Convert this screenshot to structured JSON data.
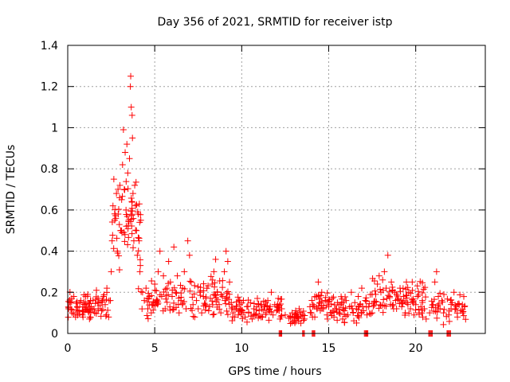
{
  "chart_data": {
    "type": "scatter",
    "title": "Day 356 of 2021, SRMTID for receiver istp",
    "xlabel": "GPS time / hours",
    "ylabel": "SRMTID / TECUs",
    "xlim": [
      0,
      24
    ],
    "ylim": [
      0,
      1.4
    ],
    "xticks": [
      0,
      5,
      10,
      15,
      20
    ],
    "xtick_labels": [
      "0",
      "5",
      "10",
      "15",
      "20"
    ],
    "yticks": [
      0,
      0.2,
      0.4,
      0.6,
      0.8,
      1.0,
      1.2,
      1.4
    ],
    "ytick_labels": [
      "0",
      "0.2",
      "0.4",
      "0.6",
      "0.8",
      "1",
      "1.2",
      "1.4"
    ],
    "grid": true,
    "marker": "+",
    "color": "#ff0000",
    "series": [
      {
        "name": "SRMTID",
        "points": [
          [
            0.05,
            0.12
          ],
          [
            0.15,
            0.15
          ],
          [
            0.25,
            0.1
          ],
          [
            0.35,
            0.18
          ],
          [
            0.45,
            0.08
          ],
          [
            0.55,
            0.13
          ],
          [
            0.65,
            0.11
          ],
          [
            0.75,
            0.16
          ],
          [
            0.85,
            0.09
          ],
          [
            0.95,
            0.14
          ],
          [
            1.05,
            0.12
          ],
          [
            1.15,
            0.19
          ],
          [
            1.25,
            0.07
          ],
          [
            1.35,
            0.13
          ],
          [
            1.45,
            0.16
          ],
          [
            1.55,
            0.1
          ],
          [
            1.65,
            0.21
          ],
          [
            1.75,
            0.12
          ],
          [
            1.85,
            0.15
          ],
          [
            1.95,
            0.11
          ],
          [
            2.05,
            0.18
          ],
          [
            2.15,
            0.14
          ],
          [
            2.25,
            0.22
          ],
          [
            2.35,
            0.08
          ],
          [
            2.45,
            0.16
          ],
          [
            2.5,
            0.3
          ],
          [
            2.55,
            0.45
          ],
          [
            2.6,
            0.62
          ],
          [
            2.65,
            0.75
          ],
          [
            2.7,
            0.55
          ],
          [
            2.8,
            0.68
          ],
          [
            2.85,
            0.4
          ],
          [
            2.9,
            0.58
          ],
          [
            3.0,
            0.72
          ],
          [
            3.05,
            0.5
          ],
          [
            3.1,
            0.65
          ],
          [
            3.15,
            0.82
          ],
          [
            3.2,
            0.99
          ],
          [
            3.25,
            0.7
          ],
          [
            3.3,
            0.88
          ],
          [
            3.35,
            0.6
          ],
          [
            3.4,
            0.92
          ],
          [
            3.45,
            0.78
          ],
          [
            3.5,
            0.55
          ],
          [
            3.55,
            0.85
          ],
          [
            3.6,
            1.2
          ],
          [
            3.62,
            1.25
          ],
          [
            3.65,
            1.1
          ],
          [
            3.7,
            1.06
          ],
          [
            3.72,
            0.95
          ],
          [
            3.75,
            0.68
          ],
          [
            3.8,
            0.45
          ],
          [
            3.85,
            0.72
          ],
          [
            3.9,
            0.62
          ],
          [
            3.95,
            0.5
          ],
          [
            4.0,
            0.38
          ],
          [
            4.05,
            0.58
          ],
          [
            4.1,
            0.45
          ],
          [
            4.15,
            0.3
          ],
          [
            4.2,
            0.55
          ],
          [
            4.3,
            0.2
          ],
          [
            4.4,
            0.16
          ],
          [
            4.5,
            0.22
          ],
          [
            4.6,
            0.12
          ],
          [
            4.7,
            0.18
          ],
          [
            4.8,
            0.1
          ],
          [
            4.9,
            0.14
          ],
          [
            5.0,
            0.24
          ],
          [
            5.1,
            0.16
          ],
          [
            5.2,
            0.3
          ],
          [
            5.3,
            0.4
          ],
          [
            5.4,
            0.18
          ],
          [
            5.5,
            0.28
          ],
          [
            5.6,
            0.12
          ],
          [
            5.7,
            0.22
          ],
          [
            5.8,
            0.35
          ],
          [
            5.9,
            0.25
          ],
          [
            6.0,
            0.18
          ],
          [
            6.1,
            0.42
          ],
          [
            6.2,
            0.2
          ],
          [
            6.3,
            0.28
          ],
          [
            6.4,
            0.1
          ],
          [
            6.5,
            0.16
          ],
          [
            6.6,
            0.22
          ],
          [
            6.7,
            0.3
          ],
          [
            6.8,
            0.12
          ],
          [
            6.9,
            0.45
          ],
          [
            7.0,
            0.38
          ],
          [
            7.1,
            0.25
          ],
          [
            7.2,
            0.14
          ],
          [
            7.3,
            0.08
          ],
          [
            7.4,
            0.16
          ],
          [
            7.5,
            0.12
          ],
          [
            7.6,
            0.2
          ],
          [
            7.7,
            0.1
          ],
          [
            7.8,
            0.18
          ],
          [
            7.9,
            0.14
          ],
          [
            8.0,
            0.22
          ],
          [
            8.1,
            0.11
          ],
          [
            8.2,
            0.17
          ],
          [
            8.3,
            0.24
          ],
          [
            8.4,
            0.3
          ],
          [
            8.5,
            0.36
          ],
          [
            8.6,
            0.2
          ],
          [
            8.7,
            0.14
          ],
          [
            8.8,
            0.1
          ],
          [
            8.9,
            0.18
          ],
          [
            9.0,
            0.3
          ],
          [
            9.1,
            0.4
          ],
          [
            9.2,
            0.35
          ],
          [
            9.3,
            0.25
          ],
          [
            9.4,
            0.15
          ],
          [
            9.5,
            0.1
          ],
          [
            9.6,
            0.08
          ],
          [
            9.7,
            0.12
          ],
          [
            9.8,
            0.09
          ],
          [
            9.9,
            0.14
          ],
          [
            10.0,
            0.11
          ],
          [
            10.1,
            0.16
          ],
          [
            10.2,
            0.08
          ],
          [
            10.3,
            0.13
          ],
          [
            10.4,
            0.1
          ],
          [
            10.5,
            0.15
          ],
          [
            10.6,
            0.07
          ],
          [
            10.7,
            0.12
          ],
          [
            10.8,
            0.09
          ],
          [
            10.9,
            0.17
          ],
          [
            11.0,
            0.11
          ],
          [
            11.1,
            0.14
          ],
          [
            11.2,
            0.08
          ],
          [
            11.3,
            0.13
          ],
          [
            11.4,
            0.1
          ],
          [
            11.5,
            0.16
          ],
          [
            11.6,
            0.12
          ],
          [
            11.7,
            0.2
          ],
          [
            11.8,
            0.09
          ],
          [
            11.9,
            0.14
          ],
          [
            12.0,
            0.11
          ],
          [
            12.1,
            0.17
          ],
          [
            12.2,
            0.07
          ],
          [
            12.3,
            0.12
          ],
          [
            12.5,
            0.09
          ],
          [
            12.9,
            0.1
          ],
          [
            13.0,
            0.06
          ],
          [
            13.1,
            0.11
          ],
          [
            13.2,
            0.08
          ],
          [
            13.3,
            0.12
          ],
          [
            13.4,
            0.05
          ],
          [
            13.5,
            0.09
          ],
          [
            13.6,
            0.07
          ],
          [
            14.0,
            0.1
          ],
          [
            14.1,
            0.14
          ],
          [
            14.2,
            0.08
          ],
          [
            14.3,
            0.18
          ],
          [
            14.4,
            0.25
          ],
          [
            14.5,
            0.15
          ],
          [
            14.6,
            0.2
          ],
          [
            14.7,
            0.12
          ],
          [
            14.8,
            0.16
          ],
          [
            14.9,
            0.09
          ],
          [
            15.0,
            0.13
          ],
          [
            15.1,
            0.1
          ],
          [
            15.2,
            0.17
          ],
          [
            15.3,
            0.08
          ],
          [
            15.4,
            0.12
          ],
          [
            15.5,
            0.15
          ],
          [
            15.6,
            0.1
          ],
          [
            15.7,
            0.14
          ],
          [
            15.8,
            0.07
          ],
          [
            15.9,
            0.11
          ],
          [
            16.0,
            0.16
          ],
          [
            16.1,
            0.09
          ],
          [
            16.2,
            0.13
          ],
          [
            16.3,
            0.2
          ],
          [
            16.4,
            0.1
          ],
          [
            16.5,
            0.15
          ],
          [
            16.6,
            0.12
          ],
          [
            16.7,
            0.18
          ],
          [
            16.8,
            0.14
          ],
          [
            16.9,
            0.22
          ],
          [
            17.0,
            0.11
          ],
          [
            17.1,
            0.16
          ],
          [
            17.2,
            0.09
          ],
          [
            17.3,
            0.13
          ],
          [
            17.5,
            0.1
          ],
          [
            17.6,
            0.15
          ],
          [
            17.7,
            0.19
          ],
          [
            17.8,
            0.24
          ],
          [
            17.9,
            0.28
          ],
          [
            18.0,
            0.2
          ],
          [
            18.1,
            0.26
          ],
          [
            18.2,
            0.3
          ],
          [
            18.3,
            0.22
          ],
          [
            18.4,
            0.38
          ],
          [
            18.5,
            0.18
          ],
          [
            18.6,
            0.25
          ],
          [
            18.7,
            0.14
          ],
          [
            18.8,
            0.2
          ],
          [
            18.9,
            0.12
          ],
          [
            19.0,
            0.17
          ],
          [
            19.1,
            0.22
          ],
          [
            19.2,
            0.13
          ],
          [
            19.3,
            0.18
          ],
          [
            19.4,
            0.1
          ],
          [
            19.5,
            0.15
          ],
          [
            19.6,
            0.2
          ],
          [
            19.7,
            0.12
          ],
          [
            19.8,
            0.25
          ],
          [
            19.9,
            0.09
          ],
          [
            20.0,
            0.14
          ],
          [
            20.1,
            0.18
          ],
          [
            20.2,
            0.1
          ],
          [
            20.3,
            0.13
          ],
          [
            20.4,
            0.08
          ],
          [
            20.5,
            0.12
          ],
          [
            20.6,
            0.07
          ],
          [
            20.8,
            0.1
          ],
          [
            21.0,
            0.14
          ],
          [
            21.1,
            0.25
          ],
          [
            21.2,
            0.3
          ],
          [
            21.3,
            0.18
          ],
          [
            21.4,
            0.12
          ],
          [
            21.5,
            0.16
          ],
          [
            21.6,
            0.1
          ],
          [
            21.9,
            0.09
          ],
          [
            22.1,
            0.15
          ],
          [
            22.2,
            0.2
          ],
          [
            22.3,
            0.12
          ],
          [
            22.4,
            0.08
          ],
          [
            22.5,
            0.14
          ],
          [
            22.6,
            0.11
          ],
          [
            22.7,
            0.1
          ],
          [
            22.8,
            0.13
          ]
        ]
      }
    ],
    "dense_clusters": [
      {
        "x_range": [
          0.0,
          2.4
        ],
        "y_center": 0.13,
        "y_spread": 0.05,
        "n": 70
      },
      {
        "x_range": [
          2.5,
          4.2
        ],
        "y_center": 0.5,
        "y_spread": 0.18,
        "n": 60
      },
      {
        "x_range": [
          4.2,
          9.6
        ],
        "y_center": 0.17,
        "y_spread": 0.07,
        "n": 110
      },
      {
        "x_range": [
          9.6,
          12.3
        ],
        "y_center": 0.12,
        "y_spread": 0.04,
        "n": 60
      },
      {
        "x_range": [
          12.7,
          13.8
        ],
        "y_center": 0.08,
        "y_spread": 0.02,
        "n": 25
      },
      {
        "x_range": [
          13.9,
          17.4
        ],
        "y_center": 0.13,
        "y_spread": 0.05,
        "n": 75
      },
      {
        "x_range": [
          17.4,
          20.6
        ],
        "y_center": 0.17,
        "y_spread": 0.06,
        "n": 75
      },
      {
        "x_range": [
          20.9,
          22.9
        ],
        "y_center": 0.13,
        "y_spread": 0.05,
        "n": 40
      }
    ],
    "zero_runs": [
      [
        12.15,
        12.35
      ],
      [
        13.5,
        13.65
      ],
      [
        14.05,
        14.25
      ],
      [
        17.05,
        17.3
      ],
      [
        20.75,
        21.0
      ],
      [
        21.8,
        22.05
      ]
    ]
  }
}
